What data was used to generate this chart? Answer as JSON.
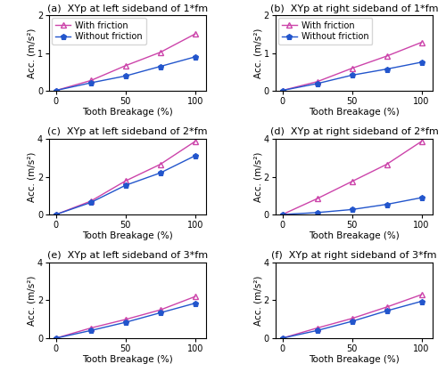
{
  "x": [
    0,
    25,
    50,
    75,
    100
  ],
  "subplots": [
    {
      "label": "(a)  XYp at left sideband of 1*fm",
      "with_friction": [
        0.02,
        0.28,
        0.67,
        1.02,
        1.5
      ],
      "without_friction": [
        0.02,
        0.22,
        0.4,
        0.65,
        0.9
      ],
      "ylim": [
        0,
        2
      ],
      "yticks": [
        0,
        1,
        2
      ],
      "show_legend": true
    },
    {
      "label": "(b)  XYp at right sideband of 1*fm",
      "with_friction": [
        0.02,
        0.25,
        0.6,
        0.92,
        1.28
      ],
      "without_friction": [
        0.02,
        0.2,
        0.42,
        0.58,
        0.76
      ],
      "ylim": [
        0,
        2
      ],
      "yticks": [
        0,
        1,
        2
      ],
      "show_legend": true
    },
    {
      "label": "(c)  XYp at left sideband of 2*fm",
      "with_friction": [
        0.02,
        0.72,
        1.78,
        2.65,
        3.85
      ],
      "without_friction": [
        0.02,
        0.65,
        1.55,
        2.2,
        3.1
      ],
      "ylim": [
        0,
        4
      ],
      "yticks": [
        0,
        2,
        4
      ],
      "show_legend": false
    },
    {
      "label": "(d)  XYp at right sideband of 2*fm",
      "with_friction": [
        0.02,
        0.85,
        1.75,
        2.65,
        3.85
      ],
      "without_friction": [
        0.02,
        0.12,
        0.28,
        0.55,
        0.9
      ],
      "ylim": [
        0,
        4
      ],
      "yticks": [
        0,
        2,
        4
      ],
      "show_legend": false
    },
    {
      "label": "(e)  XYp at left sideband of 3*fm",
      "with_friction": [
        0.02,
        0.55,
        1.0,
        1.5,
        2.2
      ],
      "without_friction": [
        0.02,
        0.42,
        0.85,
        1.35,
        1.85
      ],
      "ylim": [
        0,
        4
      ],
      "yticks": [
        0,
        2,
        4
      ],
      "show_legend": false
    },
    {
      "label": "(f)  XYp at right sideband of 3*fm",
      "with_friction": [
        0.02,
        0.55,
        1.05,
        1.65,
        2.3
      ],
      "without_friction": [
        0.02,
        0.42,
        0.9,
        1.45,
        1.95
      ],
      "ylim": [
        0,
        4
      ],
      "yticks": [
        0,
        2,
        4
      ],
      "show_legend": false
    }
  ],
  "friction_color": "#CC44AA",
  "no_friction_color": "#2255CC",
  "xlabel": "Tooth Breakage (%)",
  "ylabel": "Acc. (m/s²)",
  "friction_label": "With friction",
  "no_friction_label": "Without friction",
  "xticks": [
    0,
    50,
    100
  ],
  "legend_fontsize": 7,
  "tick_fontsize": 7,
  "label_fontsize": 7.5,
  "title_fontsize": 8
}
